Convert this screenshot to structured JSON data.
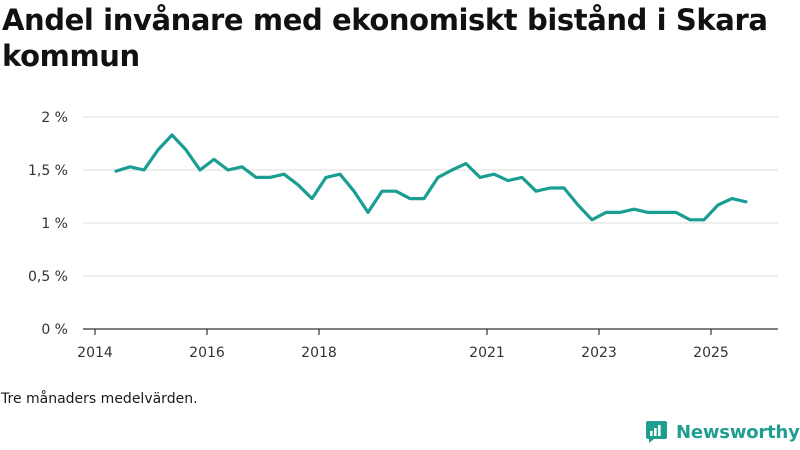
{
  "title": "Andel invånare med ekonomiskt bistånd i Skara kommun",
  "note": "Tre månaders medelvärden.",
  "brand": {
    "name": "Newsworthy",
    "icon": "newsworthy-logo-icon"
  },
  "colors": {
    "line": "#1a9e92",
    "grid": "#dcdcdc",
    "axis": "#333333",
    "brand": "#1f9e8f"
  },
  "chart_data": {
    "type": "line",
    "title": "Andel invånare med ekonomiskt bistånd i Skara kommun",
    "xlabel": "",
    "ylabel": "",
    "xlim": [
      2014.0,
      2025.6
    ],
    "ylim": [
      0,
      2
    ],
    "grid": true,
    "legend": "none",
    "y_ticks": [
      {
        "value": 0,
        "label": "0 %"
      },
      {
        "value": 0.5,
        "label": "0,5 %"
      },
      {
        "value": 1,
        "label": "1 %"
      },
      {
        "value": 1.5,
        "label": "1,5 %"
      },
      {
        "value": 2,
        "label": "2 %"
      }
    ],
    "x_ticks": [
      {
        "value": 2014,
        "label": "2014"
      },
      {
        "value": 2016,
        "label": "2016"
      },
      {
        "value": 2018,
        "label": "2018"
      },
      {
        "value": 2021,
        "label": "2021"
      },
      {
        "value": 2023,
        "label": "2023"
      },
      {
        "value": 2025,
        "label": "2025"
      }
    ],
    "series": [
      {
        "name": "Andel invånare med ekonomiskt bistånd",
        "x": [
          2014.375,
          2014.625,
          2014.875,
          2015.125,
          2015.375,
          2015.625,
          2015.875,
          2016.125,
          2016.375,
          2016.625,
          2016.875,
          2017.125,
          2017.375,
          2017.625,
          2017.875,
          2018.125,
          2018.375,
          2018.625,
          2018.875,
          2019.125,
          2019.375,
          2019.625,
          2019.875,
          2020.125,
          2020.375,
          2020.625,
          2020.875,
          2021.125,
          2021.375,
          2021.625,
          2021.875,
          2022.125,
          2022.375,
          2022.625,
          2022.875,
          2023.125,
          2023.375,
          2023.625,
          2023.875,
          2024.125,
          2024.375,
          2024.625,
          2024.875,
          2025.125,
          2025.375,
          2025.625
        ],
        "values": [
          1.49,
          1.53,
          1.5,
          1.69,
          1.83,
          1.69,
          1.5,
          1.6,
          1.5,
          1.53,
          1.43,
          1.43,
          1.46,
          1.36,
          1.23,
          1.43,
          1.46,
          1.3,
          1.1,
          1.3,
          1.3,
          1.23,
          1.23,
          1.43,
          1.5,
          1.56,
          1.43,
          1.46,
          1.4,
          1.43,
          1.3,
          1.33,
          1.33,
          1.17,
          1.03,
          1.1,
          1.1,
          1.13,
          1.1,
          1.1,
          1.1,
          1.03,
          1.03,
          1.17,
          1.23,
          1.2
        ]
      }
    ]
  }
}
